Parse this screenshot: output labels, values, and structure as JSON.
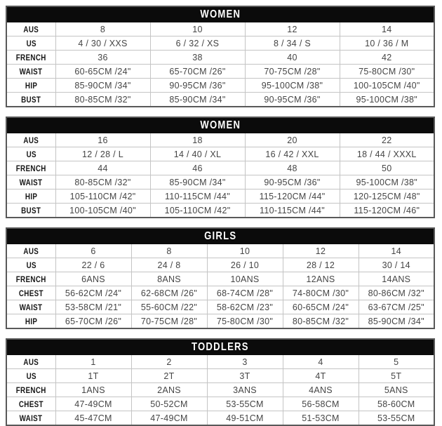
{
  "colors": {
    "header_bg": "#0b0b0b",
    "header_text": "#ffffff",
    "row_label_text": "#161616",
    "cell_text": "#454545",
    "outer_border": "#595959",
    "inner_border": "#c4c4c4",
    "page_bg": "#ffffff"
  },
  "tables": [
    {
      "title": "WOMEN",
      "rows": [
        {
          "label": "AUS",
          "values": [
            "8",
            "10",
            "12",
            "14"
          ]
        },
        {
          "label": "US",
          "values": [
            "4 / 30 / XXS",
            "6 / 32 / XS",
            "8 / 34 / S",
            "10 / 36 / M"
          ]
        },
        {
          "label": "FRENCH",
          "values": [
            "36",
            "38",
            "40",
            "42"
          ]
        },
        {
          "label": "WAIST",
          "values": [
            "60-65CM /24\"",
            "65-70CM /26\"",
            "70-75CM /28\"",
            "75-80CM /30\""
          ]
        },
        {
          "label": "HIP",
          "values": [
            "85-90CM /34\"",
            "90-95CM /36\"",
            "95-100CM /38\"",
            "100-105CM /40\""
          ]
        },
        {
          "label": "BUST",
          "values": [
            "80-85CM /32\"",
            "85-90CM /34\"",
            "90-95CM /36\"",
            "95-100CM /38\""
          ]
        }
      ]
    },
    {
      "title": "WOMEN",
      "rows": [
        {
          "label": "AUS",
          "values": [
            "16",
            "18",
            "20",
            "22"
          ]
        },
        {
          "label": "US",
          "values": [
            "12 / 28 / L",
            "14 / 40 / XL",
            "16 / 42 / XXL",
            "18 / 44 / XXXL"
          ]
        },
        {
          "label": "FRENCH",
          "values": [
            "44",
            "46",
            "48",
            "50"
          ]
        },
        {
          "label": "WAIST",
          "values": [
            "80-85CM /32\"",
            "85-90CM /34\"",
            "90-95CM /36\"",
            "95-100CM /38\""
          ]
        },
        {
          "label": "HIP",
          "values": [
            "105-110CM /42\"",
            "110-115CM /44\"",
            "115-120CM /44\"",
            "120-125CM /48\""
          ]
        },
        {
          "label": "BUST",
          "values": [
            "100-105CM /40\"",
            "105-110CM /42\"",
            "110-115CM /44\"",
            "115-120CM /46\""
          ]
        }
      ]
    },
    {
      "title": "GIRLS",
      "rows": [
        {
          "label": "AUS",
          "values": [
            "6",
            "8",
            "10",
            "12",
            "14"
          ]
        },
        {
          "label": "US",
          "values": [
            "22 / 6",
            "24 / 8",
            "26 / 10",
            "28 / 12",
            "30 / 14"
          ]
        },
        {
          "label": "FRENCH",
          "values": [
            "6ANS",
            "8ANS",
            "10ANS",
            "12ANS",
            "14ANS"
          ]
        },
        {
          "label": "CHEST",
          "values": [
            "56-62CM /24\"",
            "62-68CM /26\"",
            "68-74CM /28\"",
            "74-80CM /30\"",
            "80-86CM /32\""
          ]
        },
        {
          "label": "WAIST",
          "values": [
            "53-58CM /21\"",
            "55-60CM /22\"",
            "58-62CM /23\"",
            "60-65CM /24\"",
            "63-67CM /25\""
          ]
        },
        {
          "label": "HIP",
          "values": [
            "65-70CM /26\"",
            "70-75CM /28\"",
            "75-80CM /30\"",
            "80-85CM /32\"",
            "85-90CM /34\""
          ]
        }
      ]
    },
    {
      "title": "TODDLERS",
      "rows": [
        {
          "label": "AUS",
          "values": [
            "1",
            "2",
            "3",
            "4",
            "5"
          ]
        },
        {
          "label": "US",
          "values": [
            "1T",
            "2T",
            "3T",
            "4T",
            "5T"
          ]
        },
        {
          "label": "FRENCH",
          "values": [
            "1ANS",
            "2ANS",
            "3ANS",
            "4ANS",
            "5ANS"
          ]
        },
        {
          "label": "CHEST",
          "values": [
            "47-49CM",
            "50-52CM",
            "53-55CM",
            "56-58CM",
            "58-60CM"
          ]
        },
        {
          "label": "WAIST",
          "values": [
            "45-47CM",
            "47-49CM",
            "49-51CM",
            "51-53CM",
            "53-55CM"
          ]
        }
      ]
    }
  ]
}
